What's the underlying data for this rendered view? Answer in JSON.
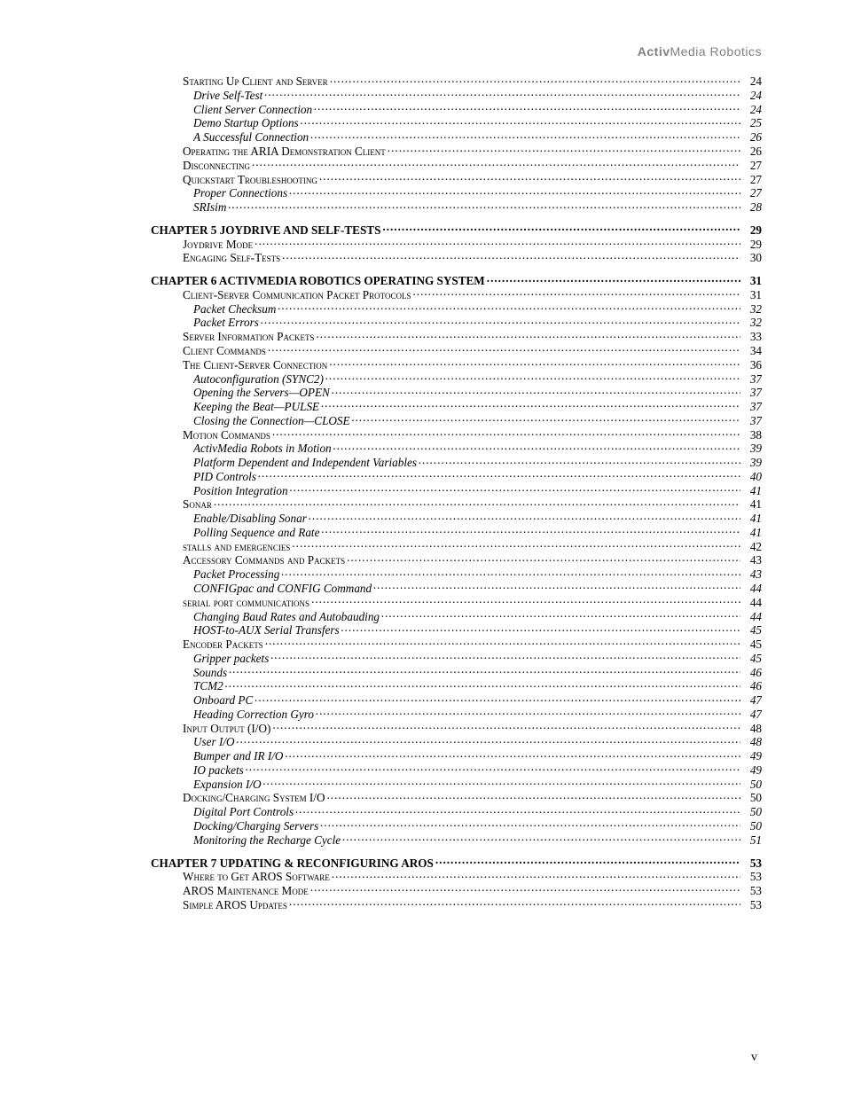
{
  "header": {
    "brand_bold": "Activ",
    "brand_rest": "Media Robotics"
  },
  "footer": {
    "page_roman": "v"
  },
  "toc": [
    {
      "level": "section",
      "label": "Starting Up Client and Server",
      "page": "24"
    },
    {
      "level": "sub",
      "label": "Drive Self-Test",
      "page": "24"
    },
    {
      "level": "sub",
      "label": "Client Server Connection",
      "page": "24"
    },
    {
      "level": "sub",
      "label": "Demo Startup Options",
      "page": "25"
    },
    {
      "level": "sub",
      "label": "A Successful Connection",
      "page": "26"
    },
    {
      "level": "section",
      "label": "Operating the ARIA Demonstration Client",
      "page": "26"
    },
    {
      "level": "section",
      "label": "Disconnecting",
      "page": "27"
    },
    {
      "level": "section",
      "label": "Quickstart Troubleshooting",
      "page": "27"
    },
    {
      "level": "sub",
      "label": "Proper Connections",
      "page": "27"
    },
    {
      "level": "sub",
      "label": "SRIsim",
      "page": "28"
    },
    {
      "level": "chapter",
      "label": "CHAPTER 5 JOYDRIVE AND SELF-TESTS",
      "page": "29"
    },
    {
      "level": "section",
      "label": "Joydrive Mode",
      "page": "29"
    },
    {
      "level": "section",
      "label": "Engaging Self-Tests",
      "page": "30"
    },
    {
      "level": "chapter",
      "label": "CHAPTER 6 ACTIVMEDIA ROBOTICS OPERATING SYSTEM",
      "page": "31"
    },
    {
      "level": "section",
      "label": "Client-Server Communication Packet Protocols",
      "page": "31"
    },
    {
      "level": "sub",
      "label": "Packet Checksum",
      "page": "32"
    },
    {
      "level": "sub",
      "label": "Packet Errors",
      "page": "32"
    },
    {
      "level": "section",
      "label": "Server Information Packets",
      "page": "33"
    },
    {
      "level": "section",
      "label": "Client Commands",
      "page": "34"
    },
    {
      "level": "section",
      "label": "The Client-Server Connection",
      "page": "36"
    },
    {
      "level": "sub",
      "label": "Autoconfiguration (SYNC2)",
      "page": "37"
    },
    {
      "level": "sub",
      "label": "Opening the Servers—OPEN",
      "page": "37"
    },
    {
      "level": "sub",
      "label": "Keeping the Beat—PULSE",
      "page": "37"
    },
    {
      "level": "sub",
      "label": "Closing the Connection—CLOSE",
      "page": "37"
    },
    {
      "level": "section",
      "label": "Motion Commands",
      "page": "38"
    },
    {
      "level": "sub",
      "label": "ActivMedia Robots in Motion",
      "page": "39"
    },
    {
      "level": "sub",
      "label": "Platform Dependent and Independent Variables",
      "page": "39"
    },
    {
      "level": "sub",
      "label": "PID Controls",
      "page": "40"
    },
    {
      "level": "sub",
      "label": "Position Integration",
      "page": "41"
    },
    {
      "level": "section",
      "label": "Sonar",
      "page": "41"
    },
    {
      "level": "sub",
      "label": "Enable/Disabling Sonar",
      "page": "41"
    },
    {
      "level": "sub",
      "label": "Polling Sequence and Rate",
      "page": "41"
    },
    {
      "level": "section",
      "label": "stalls and emergencies",
      "page": "42"
    },
    {
      "level": "section",
      "label": "Accessory Commands and Packets",
      "page": "43"
    },
    {
      "level": "sub",
      "label": "Packet Processing",
      "page": "43"
    },
    {
      "level": "sub",
      "label": "CONFIGpac and CONFIG Command",
      "page": "44"
    },
    {
      "level": "section",
      "label": "serial port communications",
      "page": "44"
    },
    {
      "level": "sub",
      "label": "Changing Baud Rates and Autobauding",
      "page": "44"
    },
    {
      "level": "sub",
      "label": "HOST-to-AUX Serial Transfers",
      "page": "45"
    },
    {
      "level": "section",
      "label": "Encoder Packets",
      "page": "45"
    },
    {
      "level": "sub",
      "label": "Gripper packets",
      "page": "45"
    },
    {
      "level": "sub",
      "label": "Sounds",
      "page": "46"
    },
    {
      "level": "sub",
      "label": "TCM2",
      "page": "46"
    },
    {
      "level": "sub",
      "label": "Onboard PC",
      "page": "47"
    },
    {
      "level": "sub",
      "label": "Heading Correction Gyro",
      "page": "47"
    },
    {
      "level": "section",
      "label": "Input Output (I/O)",
      "page": "48"
    },
    {
      "level": "sub",
      "label": "User I/O",
      "page": "48"
    },
    {
      "level": "sub",
      "label": "Bumper and IR I/O",
      "page": "49"
    },
    {
      "level": "sub",
      "label": "IO packets",
      "page": "49"
    },
    {
      "level": "sub",
      "label": "Expansion I/O",
      "page": "50"
    },
    {
      "level": "section",
      "label": "Docking/Charging System I/O",
      "page": "50"
    },
    {
      "level": "sub",
      "label": "Digital Port Controls",
      "page": "50"
    },
    {
      "level": "sub",
      "label": "Docking/Charging Servers",
      "page": "50"
    },
    {
      "level": "sub",
      "label": "Monitoring the Recharge Cycle",
      "page": "51"
    },
    {
      "level": "chapter",
      "label": "CHAPTER 7 UPDATING & RECONFIGURING AROS",
      "page": "53"
    },
    {
      "level": "section",
      "label": "Where to Get AROS Software",
      "page": "53"
    },
    {
      "level": "section",
      "label": "AROS Maintenance Mode",
      "page": "53"
    },
    {
      "level": "section",
      "label": "Simple AROS Updates",
      "page": "53"
    }
  ]
}
